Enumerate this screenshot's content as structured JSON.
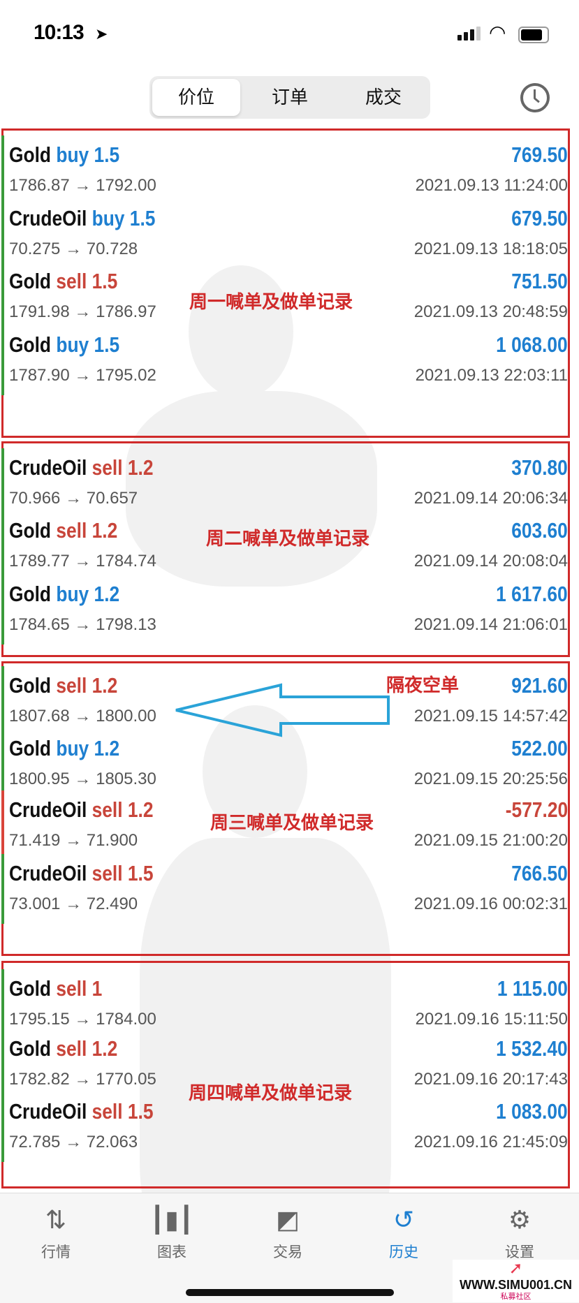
{
  "status_bar": {
    "time": "10:13"
  },
  "segmented": {
    "items": [
      "价位",
      "订单",
      "成交"
    ],
    "active": 0
  },
  "colors": {
    "buy": "#1e7fd0",
    "sell": "#c8453a",
    "profit": "#1e7fd0",
    "loss": "#c8453a",
    "bar_profit": "#3a9a3a",
    "bar_loss": "#d9453a",
    "annotation": "#d02a2a"
  },
  "trades": [
    {
      "symbol": "Gold",
      "side": "buy",
      "volume": "1.5",
      "prices": "1786.87 → 1792.00",
      "profit": "769.50",
      "time": "2021.09.13 11:24:00"
    },
    {
      "symbol": "CrudeOil",
      "side": "buy",
      "volume": "1.5",
      "prices": "70.275 → 70.728",
      "profit": "679.50",
      "time": "2021.09.13 18:18:05"
    },
    {
      "symbol": "Gold",
      "side": "sell",
      "volume": "1.5",
      "prices": "1791.98 → 1786.97",
      "profit": "751.50",
      "time": "2021.09.13 20:48:59"
    },
    {
      "symbol": "Gold",
      "side": "buy",
      "volume": "1.5",
      "prices": "1787.90 → 1795.02",
      "profit": "1 068.00",
      "time": "2021.09.13 22:03:11"
    },
    {
      "symbol": "CrudeOil",
      "side": "sell",
      "volume": "1.2",
      "prices": "70.966 → 70.657",
      "profit": "370.80",
      "time": "2021.09.14 20:06:34"
    },
    {
      "symbol": "Gold",
      "side": "sell",
      "volume": "1.2",
      "prices": "1789.77 → 1784.74",
      "profit": "603.60",
      "time": "2021.09.14 20:08:04"
    },
    {
      "symbol": "Gold",
      "side": "buy",
      "volume": "1.2",
      "prices": "1784.65 → 1798.13",
      "profit": "1 617.60",
      "time": "2021.09.14 21:06:01"
    },
    {
      "symbol": "Gold",
      "side": "sell",
      "volume": "1.2",
      "prices": "1807.68 → 1800.00",
      "profit": "921.60",
      "time": "2021.09.15 14:57:42"
    },
    {
      "symbol": "Gold",
      "side": "buy",
      "volume": "1.2",
      "prices": "1800.95 → 1805.30",
      "profit": "522.00",
      "time": "2021.09.15 20:25:56"
    },
    {
      "symbol": "CrudeOil",
      "side": "sell",
      "volume": "1.2",
      "prices": "71.419 → 71.900",
      "profit": "-577.20",
      "time": "2021.09.15 21:00:20"
    },
    {
      "symbol": "CrudeOil",
      "side": "sell",
      "volume": "1.5",
      "prices": "73.001 → 72.490",
      "profit": "766.50",
      "time": "2021.09.16 00:02:31"
    },
    {
      "symbol": "Gold",
      "side": "sell",
      "volume": "1",
      "prices": "1795.15 → 1784.00",
      "profit": "1 115.00",
      "time": "2021.09.16 15:11:50"
    },
    {
      "symbol": "Gold",
      "side": "sell",
      "volume": "1.2",
      "prices": "1782.82 → 1770.05",
      "profit": "1 532.40",
      "time": "2021.09.16 20:17:43"
    },
    {
      "symbol": "CrudeOil",
      "side": "sell",
      "volume": "1.5",
      "prices": "72.785 → 72.063",
      "profit": "1 083.00",
      "time": "2021.09.16 21:45:09"
    }
  ],
  "annotations": {
    "monday": "周一喊单及做单记录",
    "tuesday": "周二喊单及做单记录",
    "overnight": "隔夜空单",
    "wednesday": "周三喊单及做单记录",
    "thursday": "周四喊单及做单记录"
  },
  "tabbar": {
    "items": [
      {
        "label": "行情",
        "icon": "arrows-up-down-icon"
      },
      {
        "label": "图表",
        "icon": "candlestick-icon"
      },
      {
        "label": "交易",
        "icon": "trade-chart-icon"
      },
      {
        "label": "历史",
        "icon": "history-icon"
      },
      {
        "label": "设置",
        "icon": "gear-icon"
      }
    ],
    "active": 3
  },
  "watermark": {
    "url": "WWW.SIMU001.CN",
    "sub": "私募社区"
  }
}
